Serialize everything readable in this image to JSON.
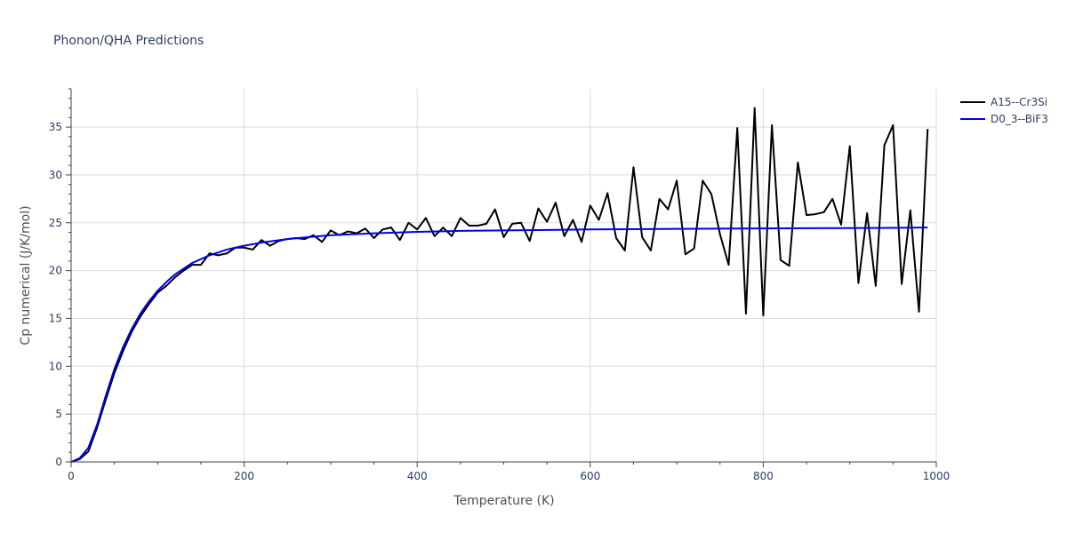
{
  "chart_data": {
    "type": "line",
    "title": "Phonon/QHA Predictions",
    "xlabel": "Temperature (K)",
    "ylabel": "Cp numerical (J/K/mol)",
    "xlim": [
      0,
      1000
    ],
    "ylim": [
      0,
      39
    ],
    "x_ticks": [
      0,
      200,
      400,
      600,
      800,
      1000
    ],
    "y_ticks": [
      0,
      5,
      10,
      15,
      20,
      25,
      30,
      35
    ],
    "grid": true,
    "legend_position": "top-right",
    "series": [
      {
        "name": "A15--Cr3Si",
        "color": "#000000",
        "x": [
          0,
          10,
          20,
          30,
          40,
          50,
          60,
          70,
          80,
          90,
          100,
          110,
          120,
          130,
          140,
          150,
          160,
          170,
          180,
          190,
          200,
          210,
          220,
          230,
          240,
          250,
          260,
          270,
          280,
          290,
          300,
          310,
          320,
          330,
          340,
          350,
          360,
          370,
          380,
          390,
          400,
          410,
          420,
          430,
          440,
          450,
          460,
          470,
          480,
          490,
          500,
          510,
          520,
          530,
          540,
          550,
          560,
          570,
          580,
          590,
          600,
          610,
          620,
          630,
          640,
          650,
          660,
          670,
          680,
          690,
          700,
          710,
          720,
          730,
          740,
          750,
          760,
          770,
          780,
          790,
          800,
          810,
          820,
          830,
          840,
          850,
          860,
          870,
          880,
          890,
          900,
          910,
          920,
          930,
          940,
          950,
          960,
          970,
          980,
          990
        ],
        "y": [
          0,
          0.3,
          1.1,
          3.6,
          6.5,
          9.3,
          11.6,
          13.6,
          15.2,
          16.5,
          17.7,
          18.4,
          19.3,
          20.0,
          20.6,
          20.6,
          21.8,
          21.6,
          21.8,
          22.4,
          22.4,
          22.2,
          23.2,
          22.6,
          23.1,
          23.3,
          23.4,
          23.3,
          23.7,
          23.0,
          24.2,
          23.7,
          24.1,
          23.9,
          24.4,
          23.4,
          24.3,
          24.5,
          23.2,
          25.0,
          24.3,
          25.5,
          23.6,
          24.5,
          23.6,
          25.5,
          24.7,
          24.7,
          24.9,
          26.4,
          23.5,
          24.9,
          25.0,
          23.1,
          26.5,
          25.1,
          27.1,
          23.6,
          25.3,
          23.0,
          26.8,
          25.3,
          28.1,
          23.4,
          22.1,
          30.8,
          23.5,
          22.1,
          27.5,
          26.4,
          29.4,
          21.7,
          22.3,
          29.4,
          28.0,
          23.8,
          20.6,
          34.9,
          15.5,
          37.0,
          15.3,
          35.2,
          21.1,
          20.5,
          31.3,
          25.8,
          25.9,
          26.1,
          27.5,
          24.8,
          33.0,
          18.7,
          26.0,
          18.4,
          33.1,
          35.2,
          18.6,
          26.3,
          15.7,
          34.8
        ]
      },
      {
        "name": "D0_3--BiF3",
        "color": "#0000ee",
        "x": [
          0,
          10,
          20,
          30,
          40,
          50,
          60,
          70,
          80,
          90,
          100,
          110,
          120,
          130,
          140,
          150,
          160,
          170,
          180,
          190,
          200,
          225,
          250,
          275,
          300,
          350,
          400,
          450,
          500,
          550,
          600,
          650,
          700,
          750,
          800,
          850,
          900,
          950,
          990
        ],
        "y": [
          0,
          0.4,
          1.5,
          3.9,
          6.9,
          9.7,
          12.0,
          13.9,
          15.5,
          16.8,
          17.9,
          18.8,
          19.6,
          20.2,
          20.8,
          21.2,
          21.6,
          21.9,
          22.2,
          22.4,
          22.6,
          23.0,
          23.3,
          23.5,
          23.7,
          23.9,
          24.05,
          24.15,
          24.2,
          24.25,
          24.3,
          24.33,
          24.36,
          24.39,
          24.41,
          24.43,
          24.45,
          24.47,
          24.5
        ]
      }
    ]
  }
}
